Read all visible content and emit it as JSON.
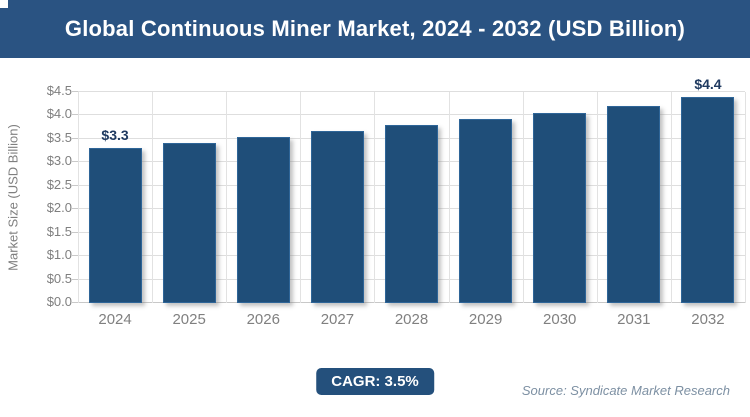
{
  "header": {
    "title": "Global Continuous Miner Market, 2024 - 2032 (USD Billion)",
    "background_color": "#2a5382",
    "text_color": "#ffffff"
  },
  "chart_data": {
    "type": "bar",
    "title": "Global Continuous Miner Market, 2024 - 2032 (USD Billion)",
    "categories": [
      "2024",
      "2025",
      "2026",
      "2027",
      "2028",
      "2029",
      "2030",
      "2031",
      "2032"
    ],
    "values": [
      3.3,
      3.42,
      3.53,
      3.66,
      3.79,
      3.92,
      4.06,
      4.2,
      4.4
    ],
    "data_labels": [
      "$3.3",
      "",
      "",
      "",
      "",
      "",
      "",
      "",
      "$4.4"
    ],
    "xlabel": "",
    "ylabel": "Market Size (USD Billion)",
    "ylim": [
      0,
      4.5
    ],
    "ytick_step": 0.5,
    "ytick_labels": [
      "$0.0",
      "$0.5",
      "$1.0",
      "$1.5",
      "$2.0",
      "$2.5",
      "$3.0",
      "$3.5",
      "$4.0",
      "$4.5"
    ],
    "grid": "horizontal and vertical light gray",
    "legend": "none",
    "bar_color": "#1f4e79",
    "bar_border_color": "#2e6598",
    "axis_text_color": "#7f7f7f",
    "value_label_color": "#1f3a60"
  },
  "footer": {
    "cagr_label": "CAGR: 3.5%",
    "cagr_badge_color": "#24507c",
    "source": "Source: Syndicate Market Research"
  }
}
